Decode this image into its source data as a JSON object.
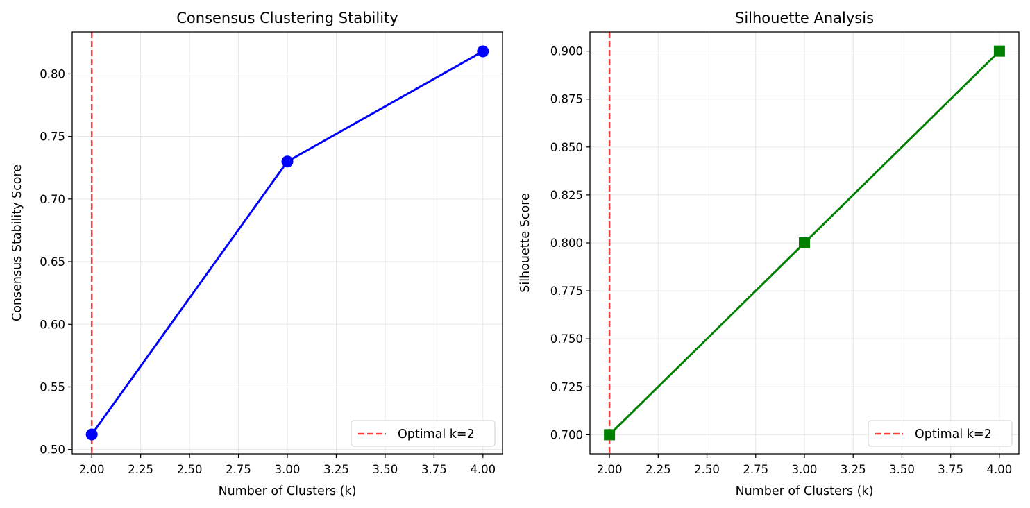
{
  "chart_data": [
    {
      "type": "line",
      "title": "Consensus Clustering Stability",
      "xlabel": "Number of Clusters (k)",
      "ylabel": "Consensus Stability Score",
      "x": [
        2,
        3,
        4
      ],
      "series": [
        {
          "values": [
            0.512,
            0.73,
            0.818
          ],
          "color": "#0000ff",
          "marker": "circle"
        }
      ],
      "xlim": [
        1.9,
        4.1
      ],
      "ylim": [
        0.4965,
        0.8335
      ],
      "xticks": [
        "2.00",
        "2.25",
        "2.50",
        "2.75",
        "3.00",
        "3.25",
        "3.50",
        "3.75",
        "4.00"
      ],
      "yticks": [
        "0.50",
        "0.55",
        "0.60",
        "0.65",
        "0.70",
        "0.75",
        "0.80"
      ],
      "reference_line": {
        "x": 2,
        "label": "Optimal k=2",
        "color": "#ff0000",
        "style": "dashed"
      },
      "grid": true,
      "legend": "lower right"
    },
    {
      "type": "line",
      "title": "Silhouette Analysis",
      "xlabel": "Number of Clusters (k)",
      "ylabel": "Silhouette Score",
      "x": [
        2,
        3,
        4
      ],
      "series": [
        {
          "values": [
            0.7,
            0.8,
            0.9
          ],
          "color": "#008000",
          "marker": "square"
        }
      ],
      "xlim": [
        1.9,
        4.1
      ],
      "ylim": [
        0.69,
        0.91
      ],
      "xticks": [
        "2.00",
        "2.25",
        "2.50",
        "2.75",
        "3.00",
        "3.25",
        "3.50",
        "3.75",
        "4.00"
      ],
      "yticks": [
        "0.700",
        "0.725",
        "0.750",
        "0.775",
        "0.800",
        "0.825",
        "0.850",
        "0.875",
        "0.900"
      ],
      "reference_line": {
        "x": 2,
        "label": "Optimal k=2",
        "color": "#ff0000",
        "style": "dashed"
      },
      "grid": true,
      "legend": "lower right"
    }
  ]
}
